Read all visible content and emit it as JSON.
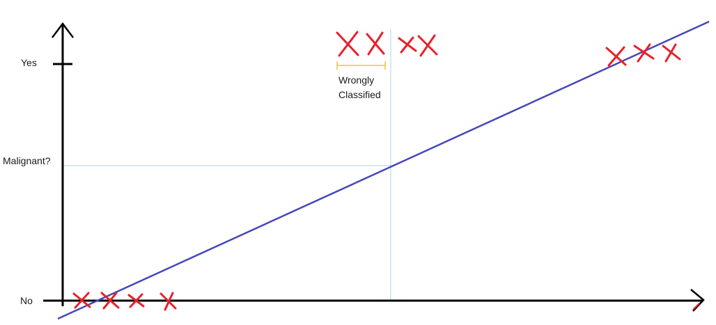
{
  "labels": {
    "yes": "Yes",
    "malignant": "Malignant?",
    "no": "No",
    "annotation_line1": "Wrongly",
    "annotation_line2": "Classified"
  },
  "colors": {
    "axis": "#000000",
    "fit_line": "#4447b8",
    "threshold": "#a9d4ee",
    "marker": "#e8202a",
    "bracket": "#f2c230"
  }
}
